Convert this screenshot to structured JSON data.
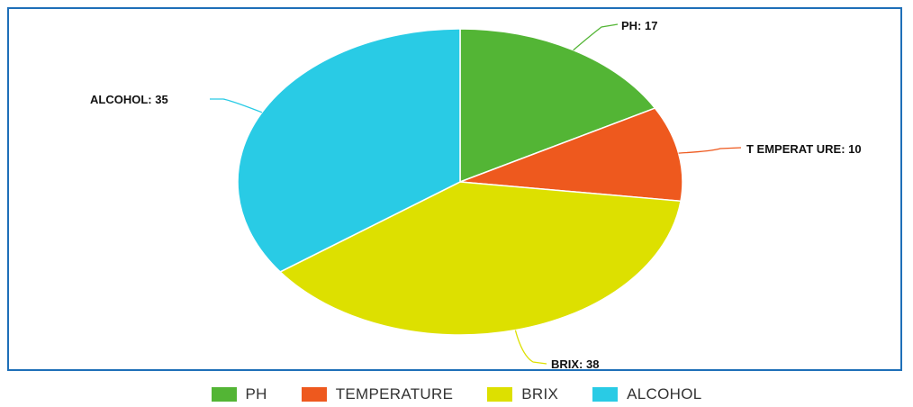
{
  "chart_data": {
    "type": "pie",
    "title": "",
    "slices": [
      {
        "name": "PH",
        "value": 17,
        "label": "PH: 17",
        "color": "#53b535"
      },
      {
        "name": "TEMPERATURE",
        "value": 10,
        "label": "T EMPERAT URE: 10",
        "color": "#ee591e"
      },
      {
        "name": "BRIX",
        "value": 38,
        "label": "BRIX: 38",
        "color": "#dde000"
      },
      {
        "name": "ALCOHOL",
        "value": 35,
        "label": "ALCOHOL: 35",
        "color": "#29cbe5"
      }
    ],
    "legend": {
      "placement": "bottom",
      "entries": [
        "PH",
        "TEMPERATURE",
        "BRIX",
        "ALCOHOL"
      ]
    }
  }
}
